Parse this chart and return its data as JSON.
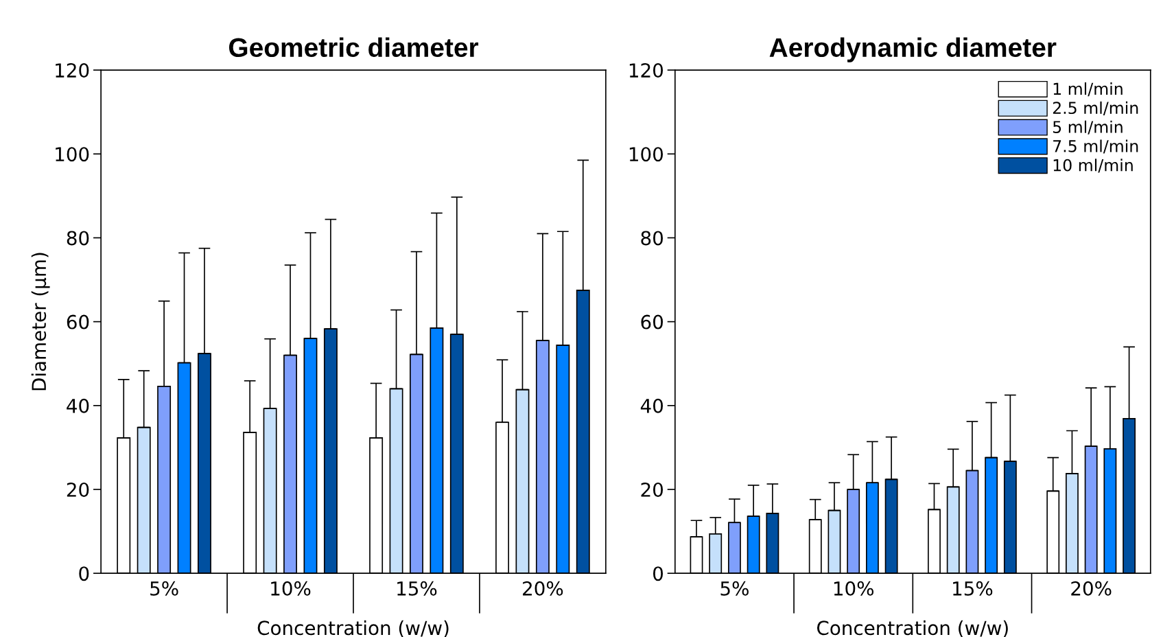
{
  "chart_data": [
    {
      "type": "bar",
      "title": "Geometric diameter",
      "xlabel": "Concentration (w/w)",
      "ylabel": "Diameter (μm)",
      "categories": [
        "5%",
        "10%",
        "15%",
        "20%"
      ],
      "ylim": [
        0,
        120
      ],
      "yticks": [
        0,
        20,
        40,
        60,
        80,
        100,
        120
      ],
      "series": [
        {
          "color": "#ffffff",
          "values": [
            32.3,
            33.6,
            32.3,
            36.0
          ],
          "errors": [
            [
              32.3,
              46.2
            ],
            [
              33.6,
              45.9
            ],
            [
              32.3,
              45.3
            ],
            [
              36.0,
              50.9
            ]
          ]
        },
        {
          "color": "#c5e0fb",
          "values": [
            34.8,
            39.3,
            44.0,
            43.8
          ],
          "errors": [
            [
              34.8,
              48.3
            ],
            [
              39.3,
              55.9
            ],
            [
              44.0,
              62.8
            ],
            [
              43.8,
              62.4
            ]
          ]
        },
        {
          "color": "#7f9ffc",
          "values": [
            44.6,
            52.0,
            52.2,
            55.5
          ],
          "errors": [
            [
              44.6,
              64.9
            ],
            [
              52.0,
              73.5
            ],
            [
              52.2,
              76.7
            ],
            [
              55.5,
              81.0
            ]
          ]
        },
        {
          "color": "#0080ff",
          "values": [
            50.2,
            56.0,
            58.5,
            54.4
          ],
          "errors": [
            [
              50.2,
              76.4
            ],
            [
              56.0,
              81.2
            ],
            [
              58.5,
              85.9
            ],
            [
              54.4,
              81.5
            ]
          ]
        },
        {
          "color": "#0050a0",
          "values": [
            52.4,
            58.3,
            57.0,
            67.5
          ],
          "errors": [
            [
              52.4,
              77.5
            ],
            [
              58.3,
              84.4
            ],
            [
              57.0,
              89.7
            ],
            [
              67.5,
              98.5
            ]
          ]
        }
      ]
    },
    {
      "type": "bar",
      "title": "Aerodynamic diameter",
      "xlabel": "Concentration (w/w)",
      "categories": [
        "5%",
        "10%",
        "15%",
        "20%"
      ],
      "ylim": [
        0,
        120
      ],
      "yticks": [
        0,
        20,
        40,
        60,
        80,
        100,
        120
      ],
      "legend": "top right",
      "series": [
        {
          "name": "1 ml/min",
          "color": "#ffffff",
          "values": [
            8.7,
            12.8,
            15.2,
            19.6
          ],
          "errors": [
            [
              8.7,
              12.6
            ],
            [
              12.8,
              17.6
            ],
            [
              15.2,
              21.4
            ],
            [
              19.6,
              27.6
            ]
          ]
        },
        {
          "name": "2.5 ml/min",
          "color": "#c5e0fb",
          "values": [
            9.4,
            15.0,
            20.6,
            23.8
          ],
          "errors": [
            [
              9.4,
              13.3
            ],
            [
              15.0,
              21.6
            ],
            [
              20.6,
              29.6
            ],
            [
              23.8,
              34.0
            ]
          ]
        },
        {
          "name": "5 ml/min",
          "color": "#7f9ffc",
          "values": [
            12.1,
            20.0,
            24.5,
            30.3
          ],
          "errors": [
            [
              12.1,
              17.7
            ],
            [
              20.0,
              28.3
            ],
            [
              24.5,
              36.2
            ],
            [
              30.3,
              44.2
            ]
          ]
        },
        {
          "name": "7.5 ml/min",
          "color": "#0080ff",
          "values": [
            13.6,
            21.6,
            27.6,
            29.7
          ],
          "errors": [
            [
              13.6,
              21.0
            ],
            [
              21.6,
              31.4
            ],
            [
              27.6,
              40.7
            ],
            [
              29.7,
              44.5
            ]
          ]
        },
        {
          "name": "10 ml/min",
          "color": "#0050a0",
          "values": [
            14.3,
            22.4,
            26.7,
            36.9
          ],
          "errors": [
            [
              14.3,
              21.3
            ],
            [
              22.4,
              32.5
            ],
            [
              26.7,
              42.5
            ],
            [
              36.9,
              54.0
            ]
          ]
        }
      ]
    }
  ]
}
